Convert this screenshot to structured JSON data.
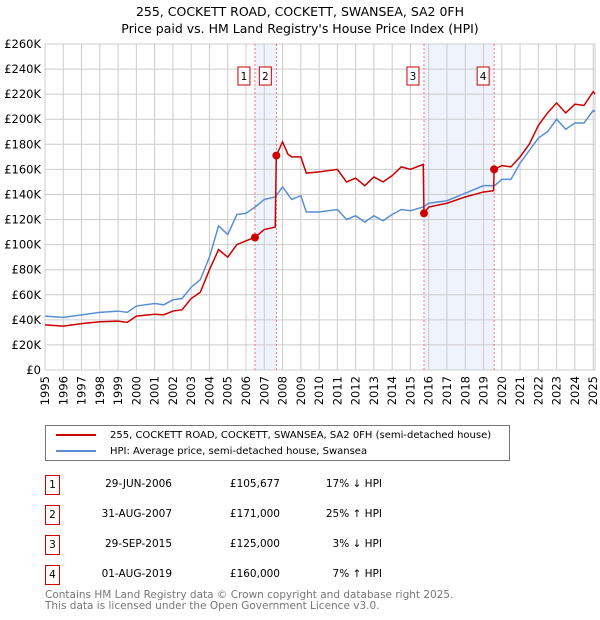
{
  "chart_data": {
    "type": "line",
    "title": "255, COCKETT ROAD, COCKETT, SWANSEA, SA2 0FH",
    "subtitle": "Price paid vs. HM Land Registry's House Price Index (HPI)",
    "xlim": [
      1995,
      2025.1
    ],
    "ylim": [
      0,
      260000
    ],
    "xticks": [
      1995,
      1996,
      1997,
      1998,
      1999,
      2000,
      2001,
      2002,
      2003,
      2004,
      2005,
      2006,
      2007,
      2008,
      2009,
      2010,
      2011,
      2012,
      2013,
      2014,
      2015,
      2016,
      2017,
      2018,
      2019,
      2020,
      2021,
      2022,
      2023,
      2024,
      2025
    ],
    "yticks": [
      {
        "v": 0,
        "l": "£0"
      },
      {
        "v": 20000,
        "l": "£20K"
      },
      {
        "v": 40000,
        "l": "£40K"
      },
      {
        "v": 60000,
        "l": "£60K"
      },
      {
        "v": 80000,
        "l": "£80K"
      },
      {
        "v": 100000,
        "l": "£100K"
      },
      {
        "v": 120000,
        "l": "£120K"
      },
      {
        "v": 140000,
        "l": "£140K"
      },
      {
        "v": 160000,
        "l": "£160K"
      },
      {
        "v": 180000,
        "l": "£180K"
      },
      {
        "v": 200000,
        "l": "£200K"
      },
      {
        "v": 220000,
        "l": "£220K"
      },
      {
        "v": 240000,
        "l": "£240K"
      },
      {
        "v": 260000,
        "l": "£260K"
      }
    ],
    "grid": true,
    "series": [
      {
        "name": "255, COCKETT ROAD, COCKETT, SWANSEA, SA2 0FH (semi-detached house)",
        "color": "#cc0000",
        "x": [
          1995,
          1996,
          1997,
          1998,
          1999,
          1999.5,
          2000,
          2001,
          2001.5,
          2002,
          2002.5,
          2003,
          2003.5,
          2004,
          2004.5,
          2005,
          2005.5,
          2006,
          2006.49,
          2007,
          2007.6,
          2007.66,
          2008,
          2008.3,
          2008.5,
          2009,
          2009.3,
          2010,
          2011,
          2011.5,
          2012,
          2012.5,
          2013,
          2013.5,
          2014,
          2014.5,
          2015,
          2015.7,
          2015.74,
          2016,
          2017,
          2018,
          2019,
          2019.55,
          2019.58,
          2020,
          2020.5,
          2021,
          2021.5,
          2022,
          2022.5,
          2023,
          2023.5,
          2024,
          2024.5,
          2025,
          2025.1
        ],
        "y": [
          36000,
          35000,
          37000,
          38500,
          39000,
          38000,
          43000,
          44500,
          44000,
          47000,
          48000,
          57000,
          62000,
          80000,
          96000,
          90000,
          100000,
          103000,
          105677,
          112000,
          114000,
          171000,
          182000,
          172000,
          170000,
          170000,
          157000,
          158000,
          160000,
          150000,
          153000,
          147000,
          154000,
          150000,
          155000,
          162000,
          160000,
          164000,
          125000,
          130000,
          133000,
          138000,
          142000,
          143000,
          160000,
          163000,
          162000,
          170000,
          180000,
          195000,
          205000,
          213000,
          205000,
          212000,
          211000,
          222000,
          220000
        ]
      },
      {
        "name": "HPI: Average price, semi-detached house, Swansea",
        "color": "#5b8fd4",
        "x": [
          1995,
          1996,
          1997,
          1998,
          1999,
          1999.5,
          2000,
          2001,
          2001.5,
          2002,
          2002.5,
          2003,
          2003.5,
          2004,
          2004.5,
          2005,
          2005.5,
          2006,
          2006.5,
          2007,
          2007.6,
          2008,
          2008.5,
          2009,
          2009.3,
          2010,
          2011,
          2011.5,
          2012,
          2012.5,
          2013,
          2013.5,
          2014,
          2014.5,
          2015,
          2015.7,
          2016,
          2017,
          2018,
          2019,
          2019.6,
          2020,
          2020.5,
          2021,
          2021.5,
          2022,
          2022.5,
          2023,
          2023.5,
          2024,
          2024.5,
          2025,
          2025.1
        ],
        "y": [
          43000,
          42000,
          44000,
          46000,
          47000,
          46000,
          51000,
          53000,
          52000,
          56000,
          57000,
          66000,
          72000,
          90000,
          115000,
          108000,
          124000,
          125000,
          130000,
          136000,
          138000,
          146000,
          136000,
          139000,
          126000,
          126000,
          128000,
          120000,
          123000,
          118000,
          123000,
          119000,
          124000,
          128000,
          127000,
          130000,
          133000,
          135000,
          141000,
          147000,
          147000,
          152000,
          152000,
          165000,
          175000,
          185000,
          190000,
          200000,
          192000,
          197000,
          197000,
          207000,
          206000
        ]
      }
    ],
    "sales": [
      {
        "n": "1",
        "x": 2006.49,
        "y": 105677
      },
      {
        "n": "2",
        "x": 2007.66,
        "y": 171000
      },
      {
        "n": "3",
        "x": 2015.74,
        "y": 125000
      },
      {
        "n": "4",
        "x": 2019.58,
        "y": 160000
      }
    ],
    "shaded": [
      [
        2006.49,
        2007.66
      ],
      [
        2015.74,
        2019.58
      ]
    ]
  },
  "table": [
    {
      "n": "1",
      "date": "29-JUN-2006",
      "price": "£105,677",
      "hpi": "17% ↓ HPI"
    },
    {
      "n": "2",
      "date": "31-AUG-2007",
      "price": "£171,000",
      "hpi": "25% ↑ HPI"
    },
    {
      "n": "3",
      "date": "29-SEP-2015",
      "price": "£125,000",
      "hpi": "3% ↓ HPI"
    },
    {
      "n": "4",
      "date": "01-AUG-2019",
      "price": "£160,000",
      "hpi": "7% ↑ HPI"
    }
  ],
  "footer": {
    "line1": "Contains HM Land Registry data © Crown copyright and database right 2025.",
    "line2": "This data is licensed under the Open Government Licence v3.0."
  }
}
